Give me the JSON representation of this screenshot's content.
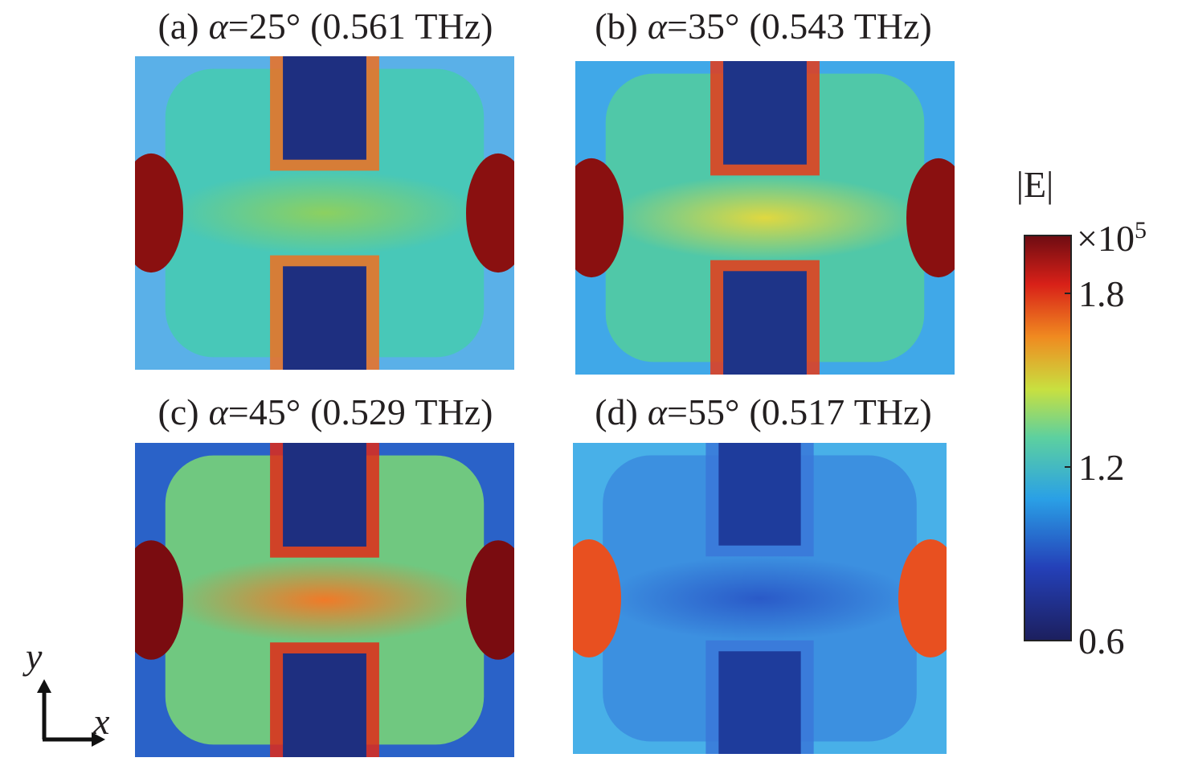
{
  "panels": [
    {
      "label": "(a)",
      "symbol": "α",
      "angle": "=25°",
      "frequency": "(0.561 THz)"
    },
    {
      "label": "(b)",
      "symbol": "α",
      "angle": "=35°",
      "frequency": "(0.543 THz)"
    },
    {
      "label": "(c)",
      "symbol": "α",
      "angle": "=45°",
      "frequency": "(0.529 THz)"
    },
    {
      "label": "(d)",
      "symbol": "α",
      "angle": "=55°",
      "frequency": "(0.517 THz)"
    }
  ],
  "colorbar": {
    "title": "|E|",
    "multiplier": "×10",
    "exponent": "5",
    "range": [
      0.6,
      2.0
    ],
    "ticks": [
      0.6,
      1.2,
      1.8
    ]
  },
  "axes": {
    "x": "x",
    "y": "y"
  }
}
